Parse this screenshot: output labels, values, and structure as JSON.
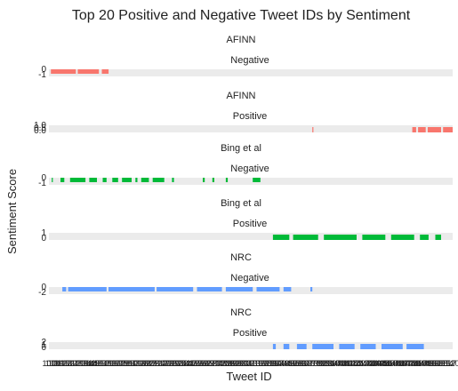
{
  "chart_data": {
    "type": "bar",
    "title": "Top 20 Positive and Negative Tweet IDs by Sentiment",
    "xlabel": "Tweet ID",
    "ylabel": "Sentiment Score",
    "facets": [
      {
        "lexicon": "AFINN",
        "sentiment": "Negative",
        "color": "#F8766D",
        "tick_labels": [
          "-1",
          "0"
        ],
        "ylim": [
          -1,
          0
        ],
        "note": "approximate tweet index range [start, end] of visible bars",
        "bars": [
          [
            2,
            28
          ],
          [
            30,
            52
          ],
          [
            55,
            62
          ]
        ]
      },
      {
        "lexicon": "AFINN",
        "sentiment": "Positive",
        "color": "#F8766D",
        "tick_labels": [
          "0.0",
          "0.5",
          "1.0"
        ],
        "ylim": [
          0,
          1
        ],
        "bars": [
          [
            274,
            275
          ],
          [
            378,
            382
          ],
          [
            384,
            392
          ],
          [
            394,
            408
          ],
          [
            410,
            420
          ]
        ]
      },
      {
        "lexicon": "Bing et al",
        "sentiment": "Negative",
        "color": "#00BA38",
        "tick_labels": [
          "-1",
          "0"
        ],
        "ylim": [
          -1,
          0
        ],
        "bars": [
          [
            3,
            4
          ],
          [
            12,
            16
          ],
          [
            22,
            38
          ],
          [
            42,
            50
          ],
          [
            56,
            60
          ],
          [
            66,
            72
          ],
          [
            76,
            86
          ],
          [
            90,
            92
          ],
          [
            96,
            104
          ],
          [
            108,
            120
          ],
          [
            128,
            130
          ],
          [
            160,
            162
          ],
          [
            170,
            172
          ],
          [
            184,
            186
          ],
          [
            212,
            220
          ]
        ]
      },
      {
        "lexicon": "Bing et al",
        "sentiment": "Positive",
        "color": "#00BA38",
        "tick_labels": [
          "0",
          "1"
        ],
        "ylim": [
          0,
          1
        ],
        "bars": [
          [
            233,
            250
          ],
          [
            254,
            280
          ],
          [
            286,
            320
          ],
          [
            326,
            350
          ],
          [
            356,
            380
          ],
          [
            386,
            395
          ],
          [
            402,
            408
          ]
        ]
      },
      {
        "lexicon": "NRC",
        "sentiment": "Negative",
        "color": "#619CFF",
        "tick_labels": [
          "-2",
          "0"
        ],
        "ylim": [
          -2,
          0
        ],
        "bars": [
          [
            14,
            18
          ],
          [
            20,
            60
          ],
          [
            62,
            110
          ],
          [
            112,
            150
          ],
          [
            154,
            180
          ],
          [
            184,
            212
          ],
          [
            216,
            240
          ],
          [
            244,
            252
          ],
          [
            272,
            274
          ]
        ]
      },
      {
        "lexicon": "NRC",
        "sentiment": "Positive",
        "color": "#619CFF",
        "tick_labels": [
          "0",
          "1",
          "2"
        ],
        "ylim": [
          0,
          2
        ],
        "bars": [
          [
            233,
            236
          ],
          [
            244,
            250
          ],
          [
            258,
            268
          ],
          [
            274,
            296
          ],
          [
            302,
            318
          ],
          [
            324,
            340
          ],
          [
            346,
            368
          ],
          [
            372,
            390
          ]
        ]
      }
    ],
    "legend": "none",
    "grid": "none"
  }
}
